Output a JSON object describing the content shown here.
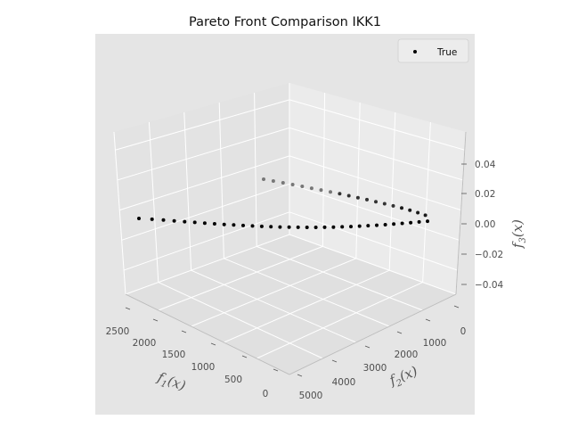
{
  "chart_data": {
    "type": "scatter",
    "title": "Pareto Front Comparison IKK1",
    "projection": "3d",
    "axes": {
      "x": {
        "label": "f_1(x)",
        "ticks": [
          "2500",
          "2000",
          "1500",
          "1000",
          "500",
          "0"
        ],
        "range": [
          0,
          2600
        ]
      },
      "y": {
        "label": "f_2(x)",
        "ticks": [
          "0",
          "1000",
          "2000",
          "3000",
          "4000",
          "5000"
        ],
        "range": [
          0,
          5000
        ]
      },
      "z": {
        "label": "f_3(x)",
        "ticks": [
          "0.04",
          "0.02",
          "0.00",
          "−0.02",
          "−0.04"
        ],
        "range": [
          -0.055,
          0.055
        ]
      }
    },
    "grid": true,
    "legend": {
      "position": "top-right",
      "entries": [
        "True"
      ]
    },
    "series": [
      {
        "name": "True",
        "color": "#000000",
        "description_points": "curve f2 = (50 - f1^0.5)^2 ... sampled",
        "x": [
          2500,
          2304,
          2116,
          1936,
          1764,
          1600,
          1444,
          1296,
          1156,
          1024,
          900,
          784,
          676,
          576,
          484,
          400,
          324,
          256,
          196,
          144,
          100,
          64,
          36,
          16,
          4,
          0
        ],
        "y": [
          0,
          4,
          16,
          36,
          64,
          100,
          144,
          196,
          256,
          324,
          400,
          484,
          576,
          676,
          784,
          900,
          1024,
          1156,
          1296,
          1444,
          1600,
          1764,
          1936,
          2116,
          2304,
          2500
        ],
        "z": [
          0,
          0,
          0,
          0,
          0,
          0,
          0,
          0,
          0,
          0,
          0,
          0,
          0,
          0,
          0,
          0,
          0,
          0,
          0,
          0,
          0,
          0,
          0,
          0,
          0,
          0
        ]
      }
    ]
  },
  "labels": {
    "title": "Pareto Front Comparison IKK1",
    "legend_true": "True",
    "x_f": "f",
    "x_sub": "1",
    "x_tail": "(x)",
    "y_f": "f",
    "y_sub": "2",
    "y_tail": "(x)",
    "z_f": "f",
    "z_sub": "3",
    "z_tail": "(x)"
  }
}
